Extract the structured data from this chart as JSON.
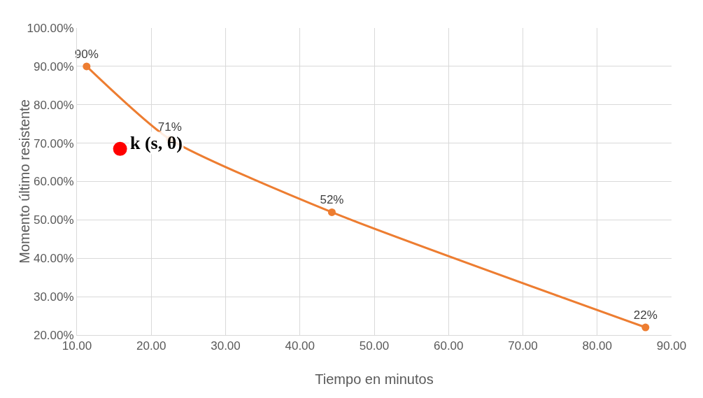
{
  "chart_data": {
    "type": "line",
    "xlabel": "Tiempo en minutos",
    "ylabel": "Momento último resistente",
    "xlim": [
      10,
      90
    ],
    "xticks": [
      {
        "value": 10,
        "label": "10.00"
      },
      {
        "value": 20,
        "label": "20.00"
      },
      {
        "value": 30,
        "label": "30.00"
      },
      {
        "value": 40,
        "label": "40.00"
      },
      {
        "value": 50,
        "label": "50.00"
      },
      {
        "value": 60,
        "label": "60.00"
      },
      {
        "value": 70,
        "label": "70.00"
      },
      {
        "value": 80,
        "label": "80.00"
      },
      {
        "value": 90,
        "label": "90.00"
      }
    ],
    "ylim": [
      20,
      100
    ],
    "yticks": [
      {
        "value": 20,
        "label": "20.00%"
      },
      {
        "value": 30,
        "label": "30.00%"
      },
      {
        "value": 40,
        "label": "40.00%"
      },
      {
        "value": 50,
        "label": "50.00%"
      },
      {
        "value": 60,
        "label": "60.00%"
      },
      {
        "value": 70,
        "label": "70.00%"
      },
      {
        "value": 80,
        "label": "80.00%"
      },
      {
        "value": 90,
        "label": "90.00%"
      },
      {
        "value": 100,
        "label": "100.00%"
      }
    ],
    "grid": true,
    "marker": "circle",
    "line_style": "solid",
    "series": [
      {
        "color": "#ed7d31",
        "x": [
          11.3,
          22.5,
          44.3,
          86.5
        ],
        "values": [
          90,
          71,
          52,
          22
        ],
        "value_labels": [
          "90%",
          "71%",
          "52%",
          "22%"
        ]
      },
      {
        "type": "scatter",
        "color": "#ff0000",
        "x": [
          15.8
        ],
        "values": [
          68.5
        ]
      }
    ],
    "annotations": [
      {
        "text": "k (s, θ)",
        "x": 15.8,
        "y": 68.5
      }
    ]
  }
}
